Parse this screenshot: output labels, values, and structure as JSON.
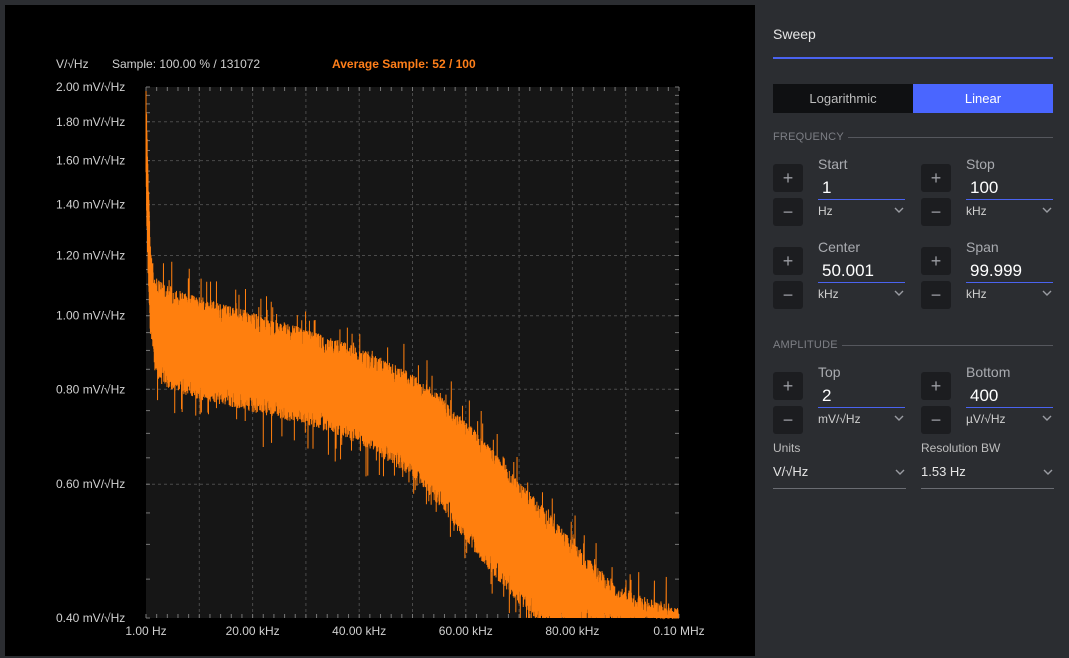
{
  "plot": {
    "units_label": "V/√Hz",
    "sample_text": "Sample: 100.00 % / 131072",
    "average_sample_text": "Average Sample: 52 / 100",
    "trace_color": "#ff7f0e"
  },
  "chart_data": {
    "type": "line",
    "y_ticks": [
      "2.00 mV/√Hz",
      "1.80 mV/√Hz",
      "1.60 mV/√Hz",
      "1.40 mV/√Hz",
      "1.20 mV/√Hz",
      "1.00 mV/√Hz",
      "0.80 mV/√Hz",
      "0.60 mV/√Hz",
      "0.40 mV/√Hz"
    ],
    "y_tick_values": [
      2.0,
      1.8,
      1.6,
      1.4,
      1.2,
      1.0,
      0.8,
      0.6,
      0.4
    ],
    "x_ticks": [
      "1.00 Hz",
      "20.00 kHz",
      "40.00 kHz",
      "60.00 kHz",
      "80.00 kHz",
      "0.10 MHz"
    ],
    "x_tick_values": [
      0,
      20,
      40,
      60,
      80,
      100
    ],
    "xlim": [
      0,
      100
    ],
    "ylim": [
      0.4,
      2.0
    ],
    "y_scale": "log",
    "grid": true,
    "series": [
      {
        "envelope_x": [
          0,
          0.3,
          0.8,
          1.5,
          2.5,
          5,
          10,
          20,
          30,
          40,
          50,
          55,
          60,
          65,
          70,
          75,
          80,
          85,
          90,
          95,
          100
        ],
        "upper": [
          2.0,
          1.6,
          1.25,
          1.12,
          1.1,
          1.08,
          1.05,
          1.0,
          0.95,
          0.9,
          0.83,
          0.78,
          0.72,
          0.66,
          0.6,
          0.55,
          0.5,
          0.46,
          0.43,
          0.42,
          0.41
        ],
        "lower": [
          1.5,
          1.2,
          0.98,
          0.88,
          0.84,
          0.82,
          0.8,
          0.77,
          0.74,
          0.7,
          0.63,
          0.58,
          0.52,
          0.47,
          0.43,
          0.4,
          0.4,
          0.4,
          0.4,
          0.4,
          0.4
        ]
      }
    ]
  },
  "settings": {
    "title": "Sweep",
    "scale_modes": [
      "Logarithmic",
      "Linear"
    ],
    "scale_active": "Linear",
    "frequency_label": "FREQUENCY",
    "amplitude_label": "AMPLITUDE",
    "start": {
      "label": "Start",
      "value": "1",
      "unit": "Hz"
    },
    "stop": {
      "label": "Stop",
      "value": "100",
      "unit": "kHz"
    },
    "center": {
      "label": "Center",
      "value": "50.001",
      "unit": "kHz"
    },
    "span": {
      "label": "Span",
      "value": "99.999",
      "unit": "kHz"
    },
    "top": {
      "label": "Top",
      "value": "2",
      "unit": "mV/√Hz"
    },
    "bottom": {
      "label": "Bottom",
      "value": "400",
      "unit": "µV/√Hz"
    },
    "units": {
      "label": "Units",
      "value": "V/√Hz"
    },
    "rbw": {
      "label": "Resolution BW",
      "value": "1.53 Hz"
    },
    "plus_glyph": "+",
    "minus_glyph": "−"
  }
}
